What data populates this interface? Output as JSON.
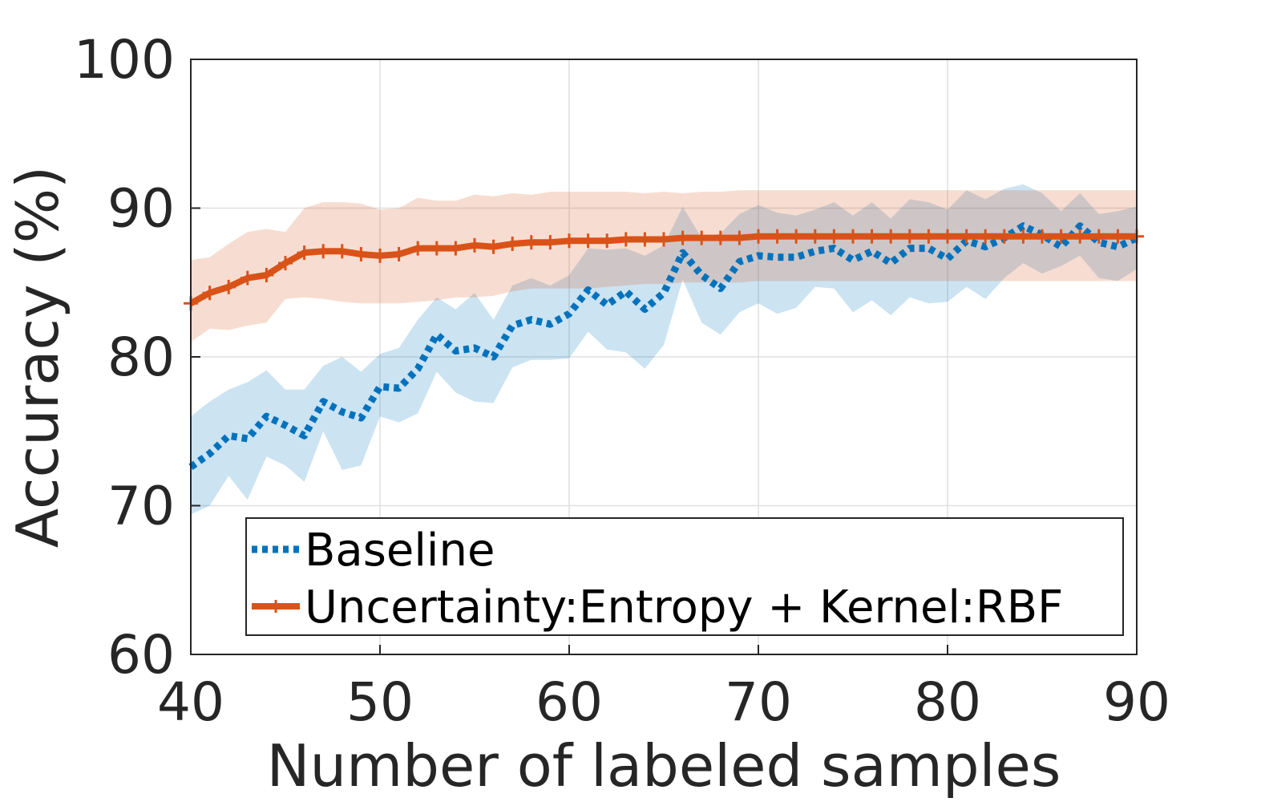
{
  "chart_data": {
    "type": "line",
    "xlabel": "Number of labeled samples",
    "ylabel": "Accuracy (%)",
    "xlim": [
      40,
      90
    ],
    "ylim": [
      60,
      100
    ],
    "xticks": [
      "40",
      "50",
      "60",
      "70",
      "80",
      "90"
    ],
    "yticks": [
      "60",
      "70",
      "80",
      "90",
      "100"
    ],
    "grid": true,
    "legend_position": "bottom-right",
    "x": [
      40,
      41,
      42,
      43,
      44,
      45,
      46,
      47,
      48,
      49,
      50,
      51,
      52,
      53,
      54,
      55,
      56,
      57,
      58,
      59,
      60,
      61,
      62,
      63,
      64,
      65,
      66,
      67,
      68,
      69,
      70,
      71,
      72,
      73,
      74,
      75,
      76,
      77,
      78,
      79,
      80,
      81,
      82,
      83,
      84,
      85,
      86,
      87,
      88,
      89,
      90
    ],
    "series": [
      {
        "name": "Baseline",
        "color": "#0072BD",
        "line_style": "dotted",
        "mean": [
          72.6,
          73.5,
          74.7,
          74.5,
          76.0,
          75.4,
          74.7,
          77.0,
          76.3,
          75.9,
          78.0,
          77.9,
          79.2,
          81.5,
          80.4,
          80.6,
          80.0,
          82.1,
          82.5,
          82.2,
          82.9,
          84.5,
          83.5,
          84.4,
          83.2,
          84.3,
          87.0,
          85.5,
          84.6,
          86.4,
          86.8,
          86.7,
          86.7,
          87.1,
          87.3,
          86.5,
          87.1,
          86.3,
          87.3,
          87.3,
          86.6,
          87.8,
          87.4,
          88.0,
          88.8,
          88.2,
          87.4,
          88.8,
          87.7,
          87.4,
          88.0
        ],
        "upper": [
          76.0,
          77.0,
          77.8,
          78.3,
          79.1,
          77.8,
          77.8,
          79.4,
          80.0,
          79.0,
          80.2,
          80.6,
          82.5,
          84.0,
          83.2,
          84.3,
          82.5,
          84.8,
          85.3,
          84.8,
          85.5,
          87.3,
          87.2,
          87.3,
          86.8,
          87.5,
          90.1,
          88.0,
          88.3,
          89.6,
          90.2,
          89.7,
          89.5,
          89.9,
          90.4,
          89.5,
          90.4,
          89.3,
          90.6,
          90.4,
          89.9,
          91.2,
          90.6,
          91.3,
          91.6,
          91.0,
          89.8,
          91.0,
          89.6,
          89.8,
          90.1
        ],
        "lower": [
          69.4,
          70.0,
          72.0,
          70.4,
          73.3,
          72.7,
          71.6,
          75.0,
          72.4,
          72.7,
          76.0,
          75.6,
          76.2,
          79.0,
          77.6,
          77.0,
          76.9,
          79.3,
          79.8,
          79.8,
          79.9,
          81.7,
          80.5,
          80.3,
          79.2,
          80.8,
          85.2,
          82.3,
          81.5,
          83.0,
          83.6,
          82.9,
          83.3,
          84.7,
          84.6,
          83.0,
          83.8,
          82.8,
          84.0,
          83.6,
          83.7,
          84.7,
          83.9,
          85.3,
          86.3,
          85.6,
          86.1,
          86.8,
          85.3,
          85.1,
          85.9
        ]
      },
      {
        "name": "Uncertainty:Entropy + Kernel:RBF",
        "color": "#D95319",
        "line_style": "solid",
        "marker": "+",
        "mean": [
          83.6,
          84.3,
          84.7,
          85.3,
          85.5,
          86.3,
          87.0,
          87.1,
          87.1,
          86.9,
          86.8,
          86.9,
          87.3,
          87.3,
          87.3,
          87.5,
          87.4,
          87.6,
          87.7,
          87.7,
          87.8,
          87.8,
          87.8,
          87.9,
          87.9,
          87.9,
          88.0,
          88.0,
          88.0,
          88.0,
          88.1,
          88.1,
          88.1,
          88.1,
          88.1,
          88.1,
          88.1,
          88.1,
          88.1,
          88.1,
          88.1,
          88.1,
          88.1,
          88.1,
          88.1,
          88.1,
          88.1,
          88.1,
          88.1,
          88.1,
          88.1
        ],
        "upper": [
          86.5,
          86.7,
          87.6,
          88.4,
          88.6,
          88.4,
          90.0,
          90.4,
          90.4,
          90.3,
          89.9,
          90.0,
          90.7,
          90.5,
          90.5,
          90.9,
          90.8,
          91.0,
          90.9,
          91.1,
          91.1,
          91.1,
          91.1,
          91.1,
          91.0,
          91.1,
          91.0,
          91.1,
          91.1,
          91.2,
          91.2,
          91.2,
          91.2,
          91.2,
          91.2,
          91.2,
          91.2,
          91.2,
          91.2,
          91.2,
          91.2,
          91.2,
          91.2,
          91.2,
          91.2,
          91.2,
          91.2,
          91.2,
          91.2,
          91.2,
          91.2
        ],
        "lower": [
          81.0,
          81.9,
          81.8,
          82.1,
          82.3,
          83.9,
          84.0,
          83.9,
          83.7,
          83.6,
          83.6,
          83.6,
          83.7,
          83.8,
          84.0,
          84.0,
          84.1,
          84.4,
          84.6,
          84.6,
          84.6,
          84.6,
          84.7,
          84.8,
          84.9,
          84.9,
          85.0,
          85.0,
          85.0,
          85.0,
          85.1,
          85.1,
          85.1,
          85.1,
          85.1,
          85.1,
          85.1,
          85.1,
          85.1,
          85.1,
          85.1,
          85.1,
          85.1,
          85.1,
          85.1,
          85.1,
          85.1,
          85.1,
          85.1,
          85.1,
          85.1
        ]
      }
    ]
  }
}
